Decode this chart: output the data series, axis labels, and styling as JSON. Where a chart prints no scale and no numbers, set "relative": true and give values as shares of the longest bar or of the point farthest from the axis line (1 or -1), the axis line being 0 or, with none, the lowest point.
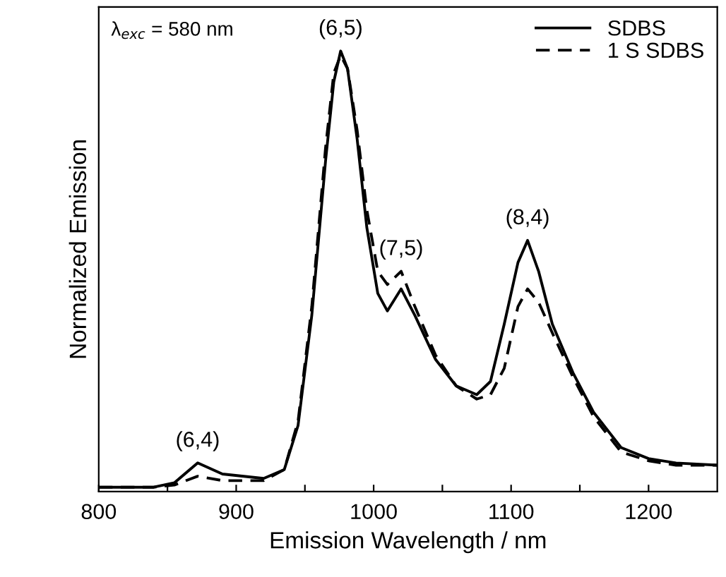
{
  "chart_data": {
    "type": "line",
    "relative": true,
    "xlabel": "Emission Wavelength / nm",
    "ylabel": "Normalized Emission",
    "tick_labels": "x",
    "legend": "top right",
    "grid": false,
    "xlim": [
      800,
      1250
    ],
    "xticks": [
      800,
      {
        "value": 850,
        "label": null
      },
      900,
      {
        "value": 950,
        "label": null
      },
      1000,
      {
        "value": 1050,
        "label": null
      },
      1100,
      {
        "value": 1150,
        "label": null
      },
      1200
    ],
    "x": [
      800,
      840,
      855,
      872,
      890,
      920,
      935,
      945,
      955,
      965,
      971,
      976,
      981,
      988,
      995,
      1003,
      1010,
      1020,
      1030,
      1045,
      1060,
      1075,
      1085,
      1095,
      1105,
      1112,
      1120,
      1130,
      1145,
      1160,
      1180,
      1200,
      1220,
      1250
    ],
    "series": [
      {
        "name": "SDBS",
        "color": "#000000",
        "line_style": "solid",
        "values": [
          0.01,
          0.01,
          0.02,
          0.065,
          0.04,
          0.03,
          0.05,
          0.15,
          0.4,
          0.75,
          0.93,
          1.0,
          0.96,
          0.8,
          0.6,
          0.45,
          0.41,
          0.46,
          0.4,
          0.3,
          0.24,
          0.22,
          0.25,
          0.38,
          0.52,
          0.57,
          0.5,
          0.38,
          0.27,
          0.18,
          0.1,
          0.075,
          0.065,
          0.06
        ]
      },
      {
        "name": "1 S SDBS",
        "color": "#000000",
        "line_style": "dashed",
        "values": [
          0.01,
          0.01,
          0.015,
          0.035,
          0.025,
          0.025,
          0.05,
          0.16,
          0.42,
          0.78,
          0.95,
          0.99,
          0.96,
          0.82,
          0.64,
          0.5,
          0.47,
          0.5,
          0.42,
          0.31,
          0.24,
          0.21,
          0.22,
          0.28,
          0.42,
          0.46,
          0.43,
          0.36,
          0.26,
          0.17,
          0.09,
          0.07,
          0.06,
          0.06
        ]
      }
    ],
    "annotations": [
      "λ$_{exc}$ = 580 nm",
      {
        "text": "(6,4)",
        "x": 872,
        "y": 0.065
      },
      {
        "text": "(6,5)",
        "x": 976,
        "y": 1.0
      },
      {
        "text": "(7,5)",
        "x": 1020,
        "y": 0.5
      },
      {
        "text": "(8,4)",
        "x": 1112,
        "y": 0.57
      }
    ]
  }
}
